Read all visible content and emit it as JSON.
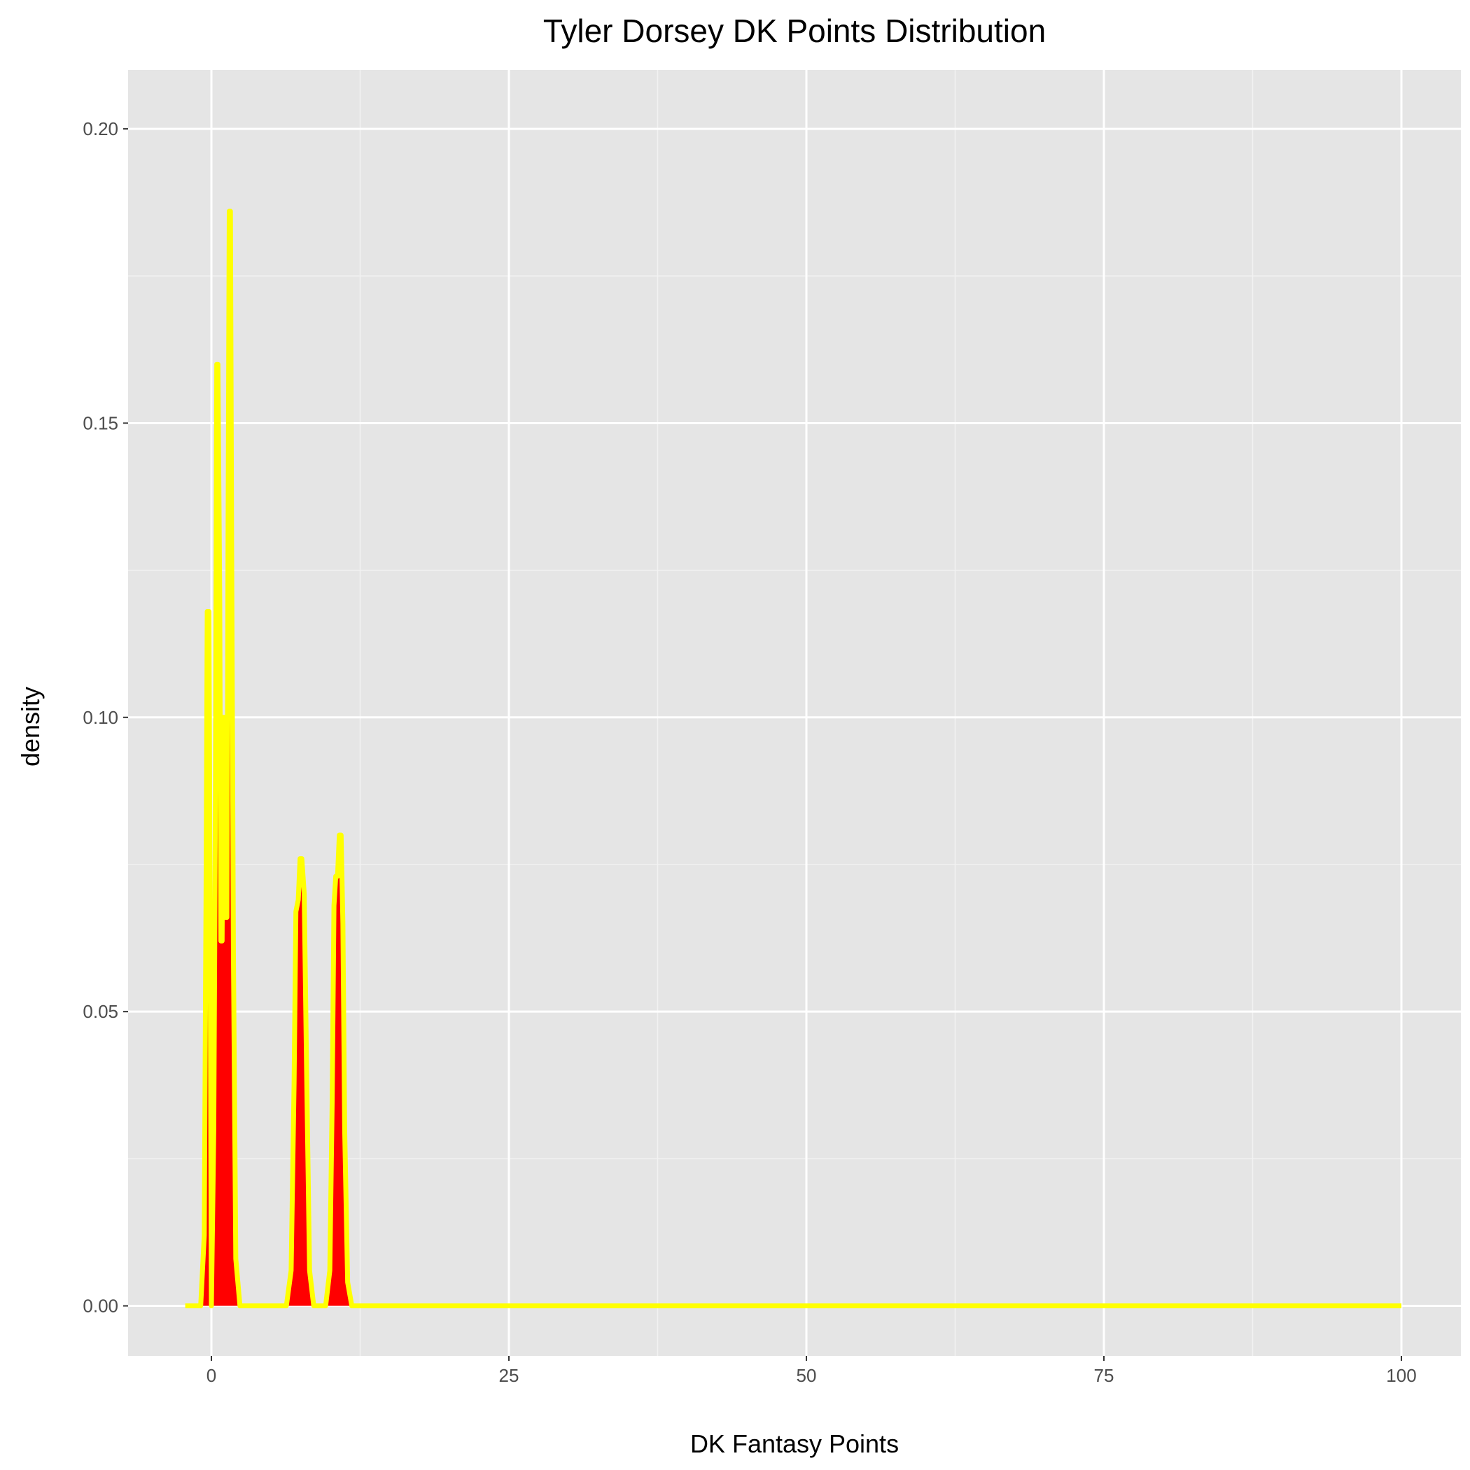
{
  "chart_data": {
    "type": "area",
    "title": "Tyler Dorsey DK Points Distribution",
    "xlabel": "DK Fantasy Points",
    "ylabel": "density",
    "xlim": [
      -7.0,
      105.0
    ],
    "ylim": [
      -0.0085,
      0.21
    ],
    "x_ticks": [
      0,
      25,
      50,
      75,
      100
    ],
    "x_tick_labels": [
      "0",
      "25",
      "50",
      "75",
      "100"
    ],
    "x_minor_ticks": [
      12.5,
      37.5,
      62.5,
      87.5
    ],
    "y_ticks": [
      0.0,
      0.05,
      0.1,
      0.15,
      0.2
    ],
    "y_tick_labels": [
      "0.00",
      "0.05",
      "0.10",
      "0.15",
      "0.20"
    ],
    "y_minor_ticks": [
      0.025,
      0.075,
      0.125,
      0.175
    ],
    "grid": true,
    "legend": "none",
    "series": [
      {
        "fill": "#ff0000",
        "stroke": "#ffff00",
        "points": [
          [
            -2.2,
            0.0
          ],
          [
            -0.9,
            0.0
          ],
          [
            -0.6,
            0.012
          ],
          [
            -0.45,
            0.07
          ],
          [
            -0.35,
            0.118
          ],
          [
            -0.2,
            0.118
          ],
          [
            -0.1,
            0.06
          ],
          [
            0.0,
            0.0
          ],
          [
            0.2,
            0.03
          ],
          [
            0.35,
            0.09
          ],
          [
            0.45,
            0.16
          ],
          [
            0.55,
            0.16
          ],
          [
            0.7,
            0.12
          ],
          [
            0.8,
            0.062
          ],
          [
            0.9,
            0.062
          ],
          [
            1.0,
            0.1
          ],
          [
            1.1,
            0.1
          ],
          [
            1.2,
            0.066
          ],
          [
            1.3,
            0.066
          ],
          [
            1.4,
            0.13
          ],
          [
            1.5,
            0.186
          ],
          [
            1.6,
            0.186
          ],
          [
            1.7,
            0.13
          ],
          [
            1.85,
            0.06
          ],
          [
            2.05,
            0.008
          ],
          [
            2.4,
            0.0
          ],
          [
            6.3,
            0.0
          ],
          [
            6.7,
            0.006
          ],
          [
            6.95,
            0.038
          ],
          [
            7.1,
            0.067
          ],
          [
            7.3,
            0.069
          ],
          [
            7.45,
            0.076
          ],
          [
            7.6,
            0.076
          ],
          [
            7.8,
            0.07
          ],
          [
            8.0,
            0.04
          ],
          [
            8.25,
            0.006
          ],
          [
            8.6,
            0.0
          ],
          [
            9.6,
            0.0
          ],
          [
            9.95,
            0.006
          ],
          [
            10.15,
            0.035
          ],
          [
            10.3,
            0.068
          ],
          [
            10.45,
            0.073
          ],
          [
            10.6,
            0.073
          ],
          [
            10.75,
            0.08
          ],
          [
            10.9,
            0.08
          ],
          [
            11.05,
            0.065
          ],
          [
            11.2,
            0.03
          ],
          [
            11.45,
            0.004
          ],
          [
            11.8,
            0.0
          ],
          [
            100.0,
            0.0
          ]
        ]
      }
    ]
  }
}
